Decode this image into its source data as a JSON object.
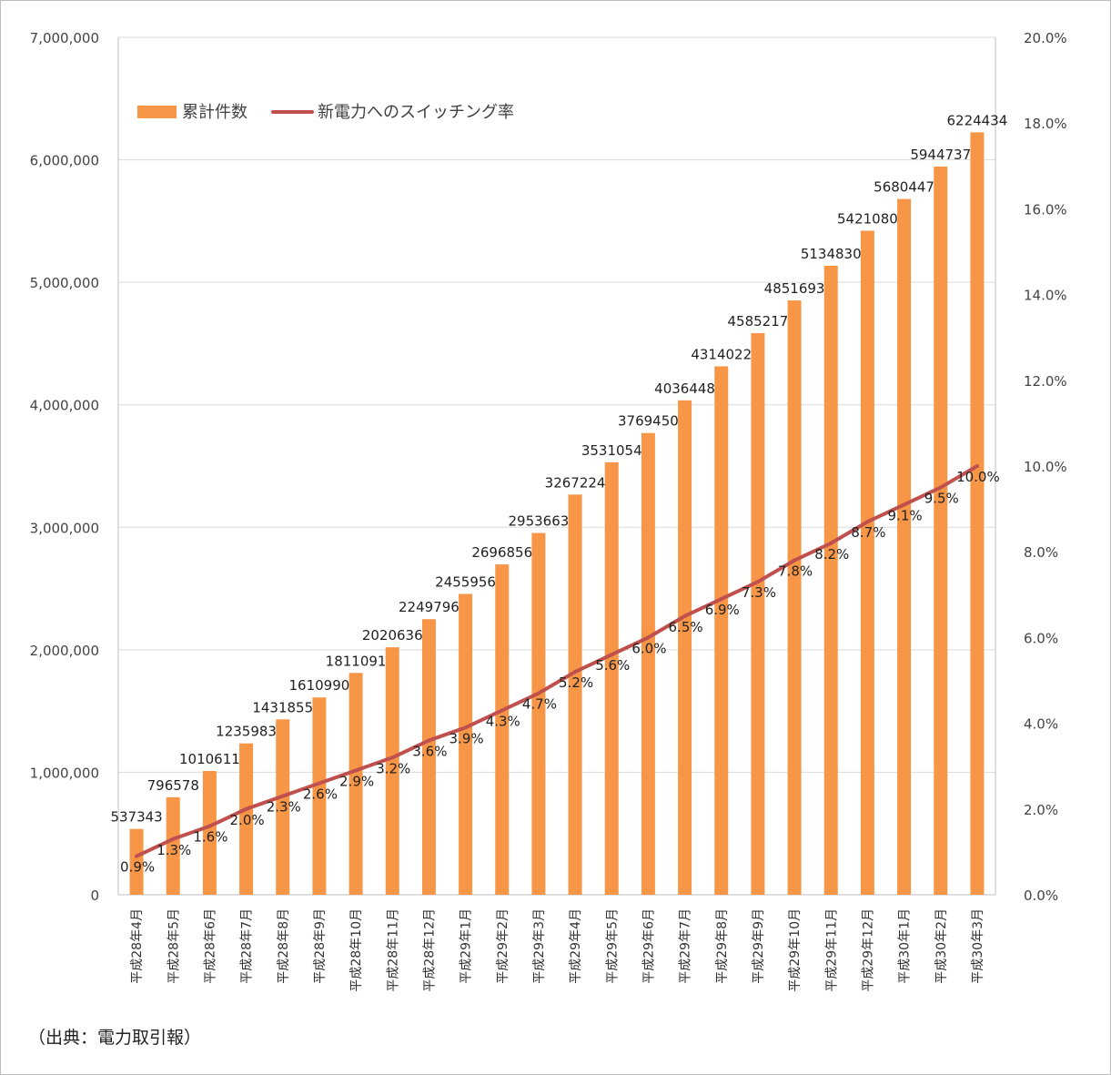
{
  "chart_data": {
    "type": "bar",
    "categories": [
      "平成28年4月",
      "平成28年5月",
      "平成28年6月",
      "平成28年7月",
      "平成28年8月",
      "平成28年9月",
      "平成28年10月",
      "平成28年11月",
      "平成28年12月",
      "平成29年1月",
      "平成29年2月",
      "平成29年3月",
      "平成29年4月",
      "平成29年5月",
      "平成29年6月",
      "平成29年7月",
      "平成29年8月",
      "平成29年9月",
      "平成29年10月",
      "平成29年11月",
      "平成29年12月",
      "平成30年1月",
      "平成30年2月",
      "平成30年3月"
    ],
    "series": [
      {
        "name": "累計件数",
        "type": "bar",
        "axis": "left",
        "color": "#F79646",
        "values": [
          537343,
          796578,
          1010611,
          1235983,
          1431855,
          1610990,
          1811091,
          2020636,
          2249796,
          2455956,
          2696856,
          2953663,
          3267224,
          3531054,
          3769450,
          4036448,
          4314022,
          4585217,
          4851693,
          5134830,
          5421080,
          5680447,
          5944737,
          6224434
        ],
        "labels": [
          "537343",
          "796578",
          "1010611",
          "1235983",
          "1431855",
          "1610990",
          "1811091",
          "2020636",
          "2249796",
          "2455956",
          "2696856",
          "2953663",
          "3267224",
          "3531054",
          "3769450",
          "4036448",
          "4314022",
          "4585217",
          "4851693",
          "5134830",
          "5421080",
          "5680447",
          "5944737",
          "6224434"
        ]
      },
      {
        "name": "新電力へのスイッチング率",
        "type": "line",
        "axis": "right",
        "color": "#C0504D",
        "values": [
          0.9,
          1.3,
          1.6,
          2.0,
          2.3,
          2.6,
          2.9,
          3.2,
          3.6,
          3.9,
          4.3,
          4.7,
          5.2,
          5.6,
          6.0,
          6.5,
          6.9,
          7.3,
          7.8,
          8.2,
          8.7,
          9.1,
          9.5,
          10.0
        ],
        "labels": [
          "0.9%",
          "1.3%",
          "1.6%",
          "2.0%",
          "2.3%",
          "2.6%",
          "2.9%",
          "3.2%",
          "3.6%",
          "3.9%",
          "4.3%",
          "4.7%",
          "5.2%",
          "5.6%",
          "6.0%",
          "6.5%",
          "6.9%",
          "7.3%",
          "7.8%",
          "8.2%",
          "8.7%",
          "9.1%",
          "9.5%",
          "10.0%"
        ]
      }
    ],
    "y_left": {
      "range": [
        0,
        7000000
      ],
      "ticks": [
        0,
        1000000,
        2000000,
        3000000,
        4000000,
        5000000,
        6000000,
        7000000
      ],
      "tick_labels": [
        "0",
        "1,000,000",
        "2,000,000",
        "3,000,000",
        "4,000,000",
        "5,000,000",
        "6,000,000",
        "7,000,000"
      ]
    },
    "y_right": {
      "range": [
        0,
        20
      ],
      "ticks": [
        0,
        2,
        4,
        6,
        8,
        10,
        12,
        14,
        16,
        18,
        20
      ],
      "tick_labels": [
        "0.0%",
        "2.0%",
        "4.0%",
        "6.0%",
        "8.0%",
        "10.0%",
        "12.0%",
        "14.0%",
        "16.0%",
        "18.0%",
        "20.0%"
      ]
    },
    "grid": true,
    "legend_position": "top-left"
  },
  "source_note": "（出典：電力取引報）"
}
